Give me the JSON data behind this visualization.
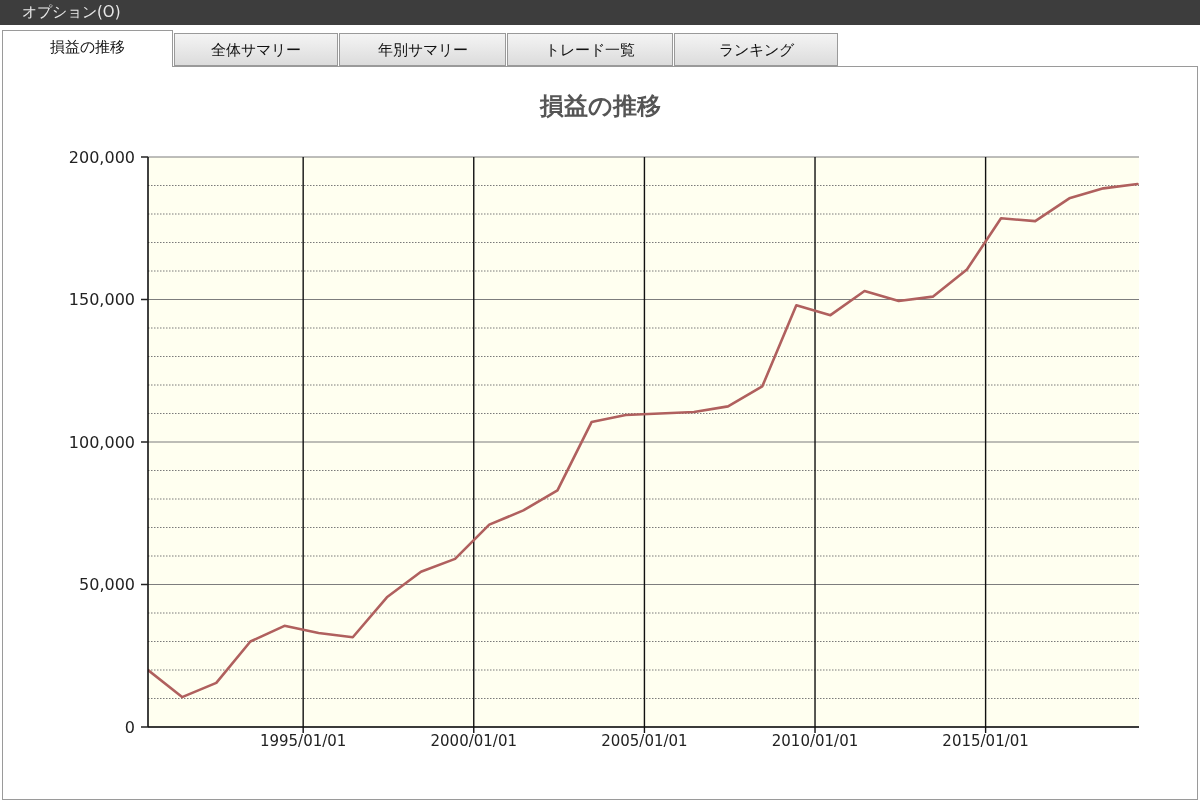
{
  "chart_data": {
    "type": "line",
    "title": "損益の推移",
    "annotations": [
      "オプション(O)",
      "損益の推移",
      "全体サマリー",
      "年別サマリー",
      "トレード一覧",
      "ランキング"
    ],
    "x": [
      "1990-06-15",
      "1991-06-15",
      "1992-06-15",
      "1993-06-15",
      "1994-06-15",
      "1995-06-15",
      "1996-06-15",
      "1997-06-15",
      "1998-06-15",
      "1999-06-15",
      "2000-06-15",
      "2001-06-15",
      "2002-06-15",
      "2003-06-15",
      "2004-06-15",
      "2005-06-15",
      "2006-06-15",
      "2007-06-15",
      "2008-06-15",
      "2009-06-15",
      "2010-06-15",
      "2011-06-15",
      "2012-06-15",
      "2013-06-15",
      "2014-06-15",
      "2015-06-15",
      "2016-06-15",
      "2017-06-15",
      "2018-06-15",
      "2019-06-15"
    ],
    "values": [
      20000,
      10500,
      15500,
      30000,
      35500,
      33000,
      31500,
      45500,
      54500,
      59000,
      71000,
      76000,
      83000,
      107000,
      109500,
      110000,
      110500,
      112500,
      119500,
      148000,
      144500,
      153000,
      149500,
      151000,
      160500,
      178500,
      177500,
      185500,
      189000,
      190500
    ],
    "color": "#b0605e",
    "xlim": [
      "1990-06-15",
      "2019-07-01"
    ],
    "xticks": [
      {
        "value": "1995-01-01",
        "label": "1995/01/01"
      },
      {
        "value": "2000-01-01",
        "label": "2000/01/01"
      },
      {
        "value": "2005-01-01",
        "label": "2005/01/01"
      },
      {
        "value": "2010-01-01",
        "label": "2010/01/01"
      },
      {
        "value": "2015-01-01",
        "label": "2015/01/01"
      }
    ],
    "ylim": [
      0,
      200000
    ],
    "yticks": [
      0,
      {
        "value": 10000,
        "label": null
      },
      {
        "value": 20000,
        "label": null
      },
      {
        "value": 30000,
        "label": null
      },
      {
        "value": 40000,
        "label": null
      },
      {
        "value": 50000,
        "label": "50,000"
      },
      {
        "value": 60000,
        "label": null
      },
      {
        "value": 70000,
        "label": null
      },
      {
        "value": 80000,
        "label": null
      },
      {
        "value": 90000,
        "label": null
      },
      {
        "value": 100000,
        "label": "100,000"
      },
      {
        "value": 110000,
        "label": null
      },
      {
        "value": 120000,
        "label": null
      },
      {
        "value": 130000,
        "label": null
      },
      {
        "value": 140000,
        "label": null
      },
      {
        "value": 150000,
        "label": "150,000"
      },
      {
        "value": 160000,
        "label": null
      },
      {
        "value": 170000,
        "label": null
      },
      {
        "value": 180000,
        "label": null
      },
      {
        "value": 190000,
        "label": null
      },
      {
        "value": 200000,
        "label": "200,000"
      }
    ],
    "grid": true
  }
}
